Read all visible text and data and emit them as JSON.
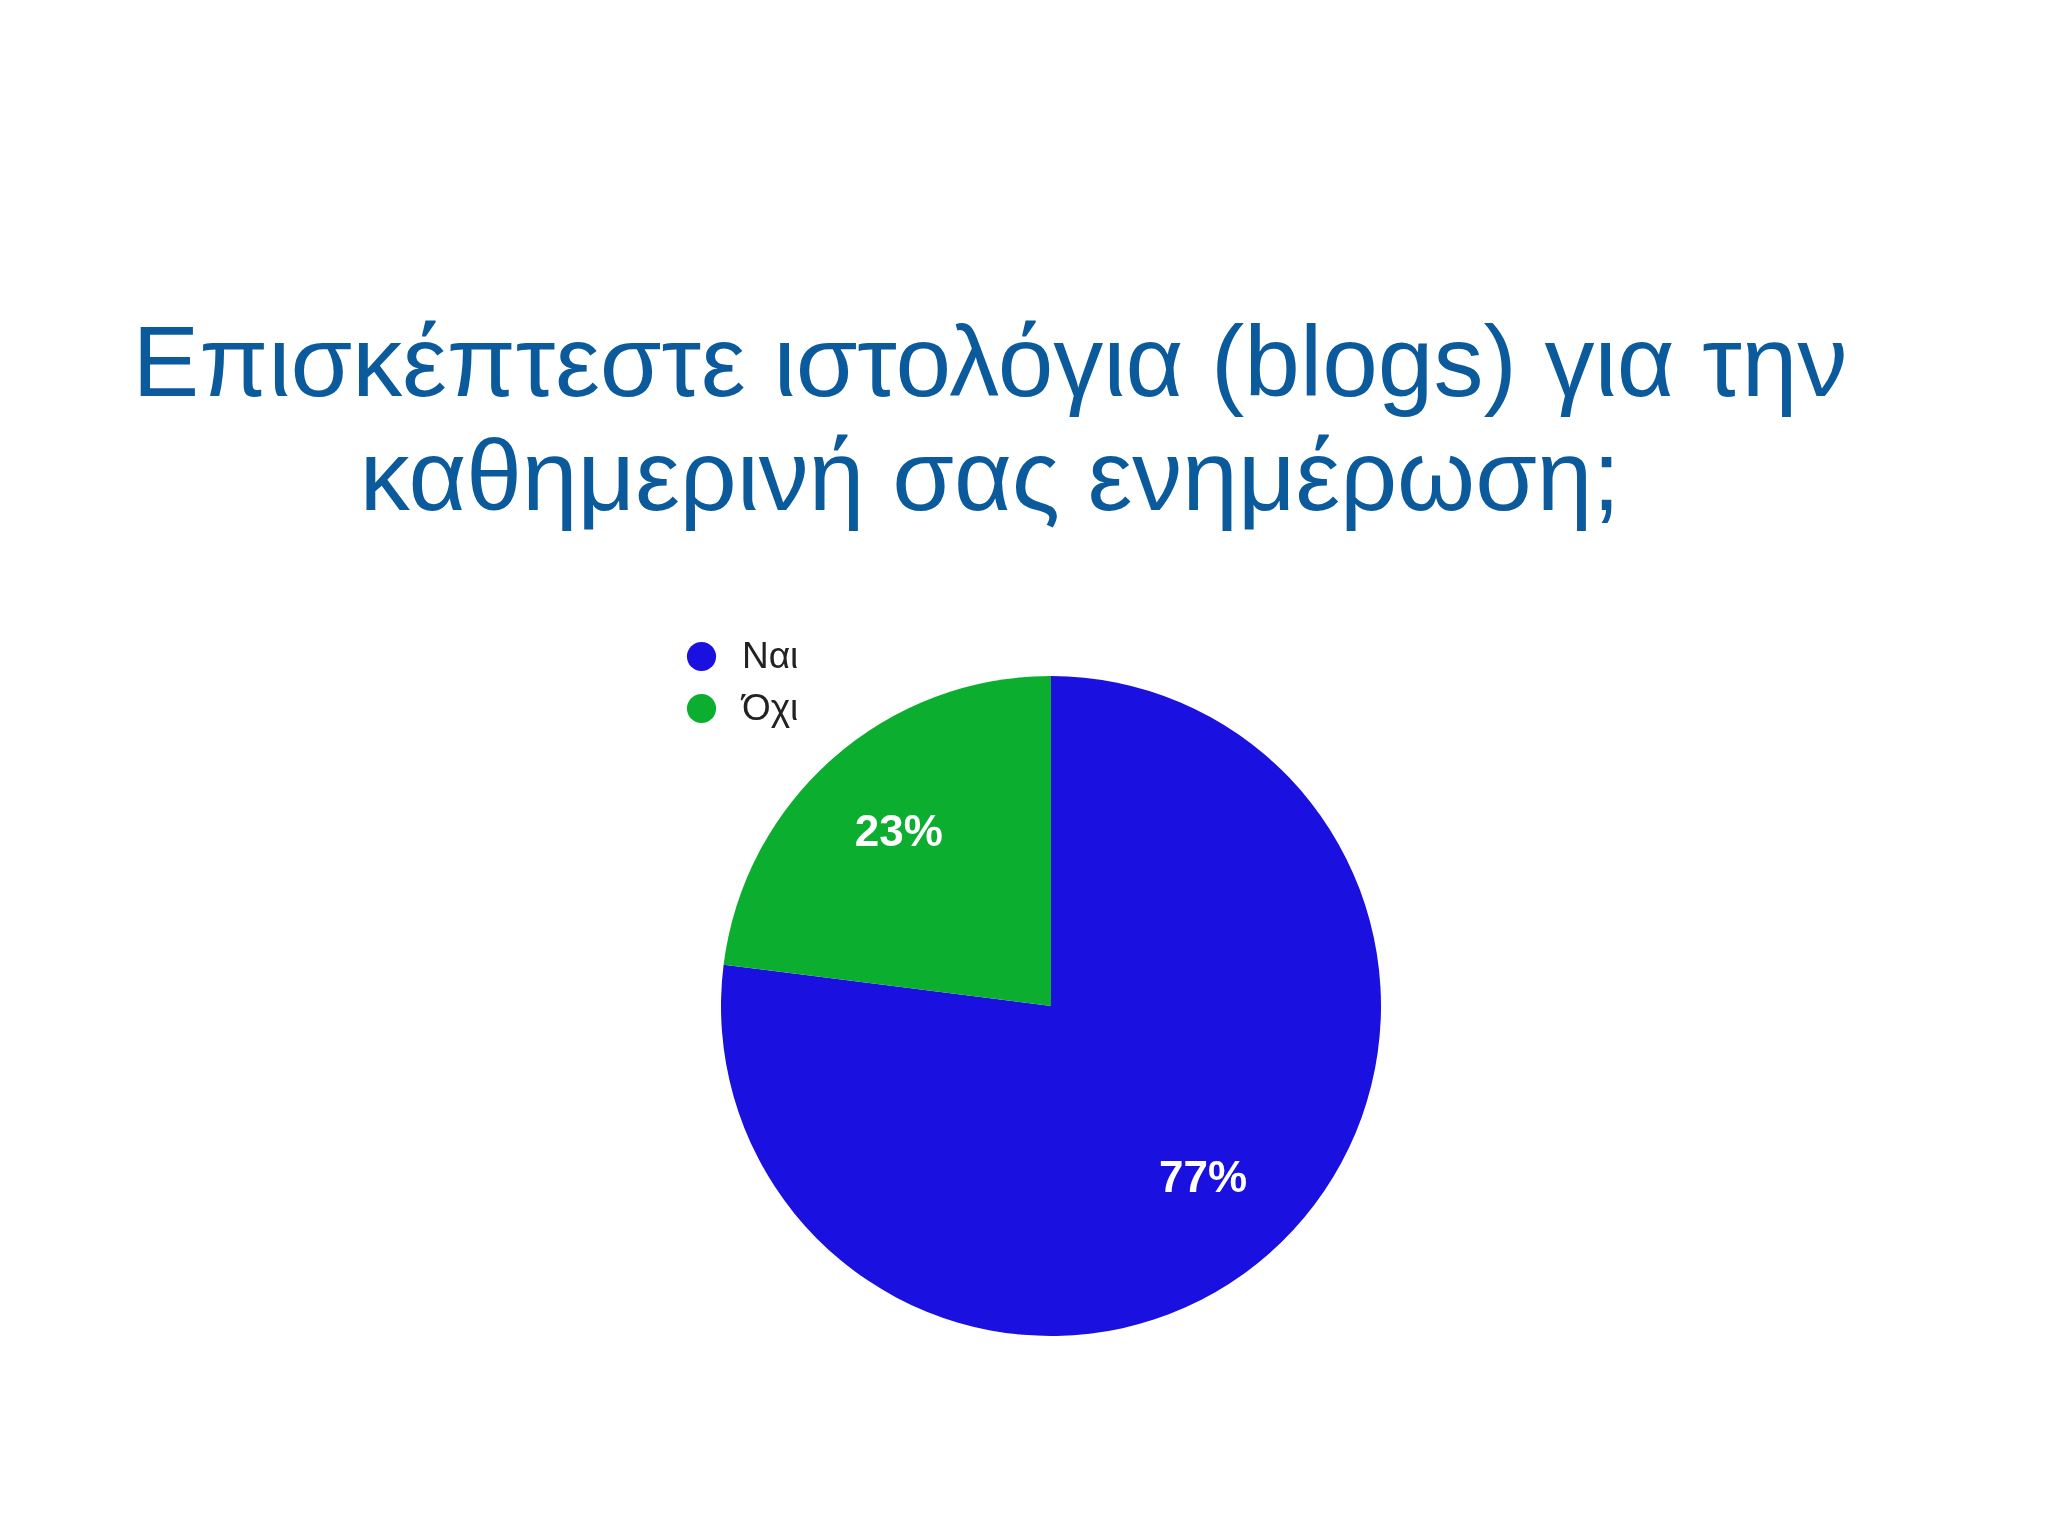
{
  "chart_data": {
    "type": "pie",
    "title": "Επισκέπτεστε  ιστολόγια (blogs) για την καθημερινή σας ενημέρωση;",
    "categories": [
      "Ναι",
      "Όχι"
    ],
    "values": [
      77,
      23
    ],
    "colors": [
      "#1a10e0",
      "#0cae30"
    ],
    "value_labels": [
      "77%",
      "23%"
    ],
    "legend": "top left"
  }
}
